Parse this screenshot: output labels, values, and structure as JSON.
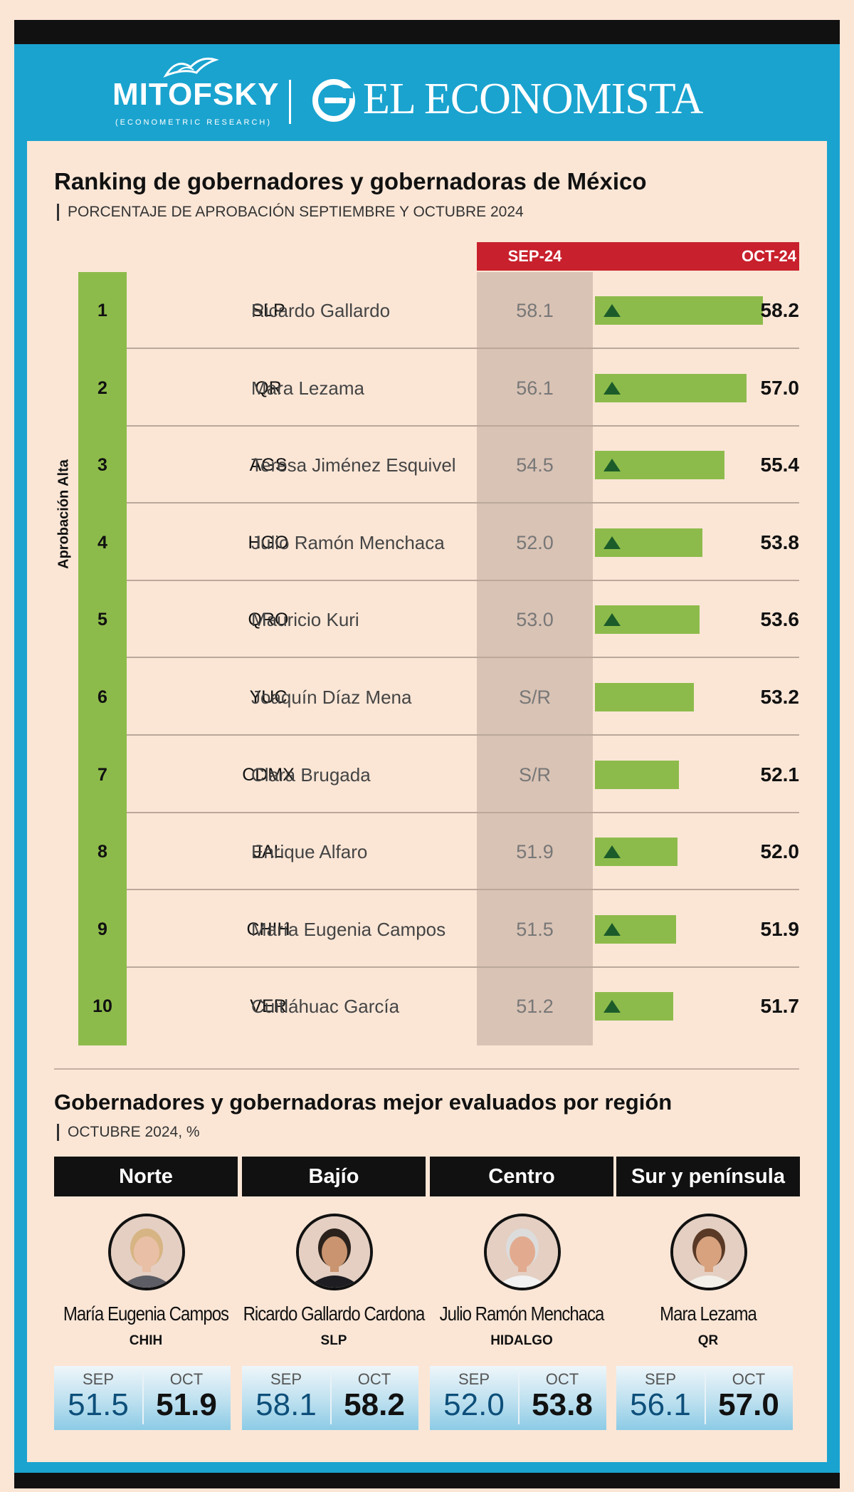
{
  "brand": {
    "logo_left": "MITOFSKY",
    "logo_left_sub": "(ECONOMETRIC RESEARCH)",
    "logo_right": "EL ECONOMISTA"
  },
  "chart_data": {
    "type": "bar",
    "title": "Ranking de gobernadores y gobernadoras de México",
    "subtitle": "PORCENTAJE DE APROBACIÓN SEPTIEMBRE Y OCTUBRE 2024",
    "group_label": "Aprobación Alta",
    "headers": {
      "sep": "SEP-24",
      "oct": "OCT-24"
    },
    "xlim": [
      0,
      60
    ],
    "rows": [
      {
        "rank": "1",
        "state": "SLP",
        "name": "Ricardo Gallardo",
        "sep": "58.1",
        "oct": 58.2,
        "oct_label": "58.2",
        "up": true
      },
      {
        "rank": "2",
        "state": "QR",
        "name": "Mara Lezama",
        "sep": "56.1",
        "oct": 57.0,
        "oct_label": "57.0",
        "up": true
      },
      {
        "rank": "3",
        "state": "AGS",
        "name": "Teresa Jiménez Esquivel",
        "sep": "54.5",
        "oct": 55.4,
        "oct_label": "55.4",
        "up": true
      },
      {
        "rank": "4",
        "state": "HGO",
        "name": "Julio Ramón Menchaca",
        "sep": "52.0",
        "oct": 53.8,
        "oct_label": "53.8",
        "up": true
      },
      {
        "rank": "5",
        "state": "QRO",
        "name": "Mauricio Kuri",
        "sep": "53.0",
        "oct": 53.6,
        "oct_label": "53.6",
        "up": true
      },
      {
        "rank": "6",
        "state": "YUC",
        "name": "Joaquín Díaz Mena",
        "sep": "S/R",
        "oct": 53.2,
        "oct_label": "53.2",
        "up": false
      },
      {
        "rank": "7",
        "state": "CDMX",
        "name": "Clara Brugada",
        "sep": "S/R",
        "oct": 52.1,
        "oct_label": "52.1",
        "up": false
      },
      {
        "rank": "8",
        "state": "JAL",
        "name": "Enrique Alfaro",
        "sep": "51.9",
        "oct": 52.0,
        "oct_label": "52.0",
        "up": true
      },
      {
        "rank": "9",
        "state": "CHIH",
        "name": "María Eugenia Campos",
        "sep": "51.5",
        "oct": 51.9,
        "oct_label": "51.9",
        "up": true
      },
      {
        "rank": "10",
        "state": "VER",
        "name": "Cuitláhuac García",
        "sep": "51.2",
        "oct": 51.7,
        "oct_label": "51.7",
        "up": true
      }
    ]
  },
  "regions": {
    "title": "Gobernadores y gobernadoras mejor evaluados por región",
    "subtitle": "OCTUBRE 2024, %",
    "sep_label": "SEP",
    "oct_label": "OCT",
    "items": [
      {
        "region": "Norte",
        "name": "María Eugenia Campos",
        "state": "CHIH",
        "sep": "51.5",
        "oct": "51.9",
        "skin": "#e9bfa5",
        "hair": "#d7b483",
        "suit": "#5d5d66"
      },
      {
        "region": "Bajío",
        "name": "Ricardo Gallardo Cardona",
        "state": "SLP",
        "sep": "58.1",
        "oct": "58.2",
        "skin": "#c9946f",
        "hair": "#2a211c",
        "suit": "#1d1d22"
      },
      {
        "region": "Centro",
        "name": "Julio Ramón Menchaca",
        "state": "HIDALGO",
        "sep": "52.0",
        "oct": "53.8",
        "skin": "#e2ab8f",
        "hair": "#dcdcdc",
        "suit": "#f1f1f1"
      },
      {
        "region": "Sur y península",
        "name": "Mara Lezama",
        "state": "QR",
        "sep": "56.1",
        "oct": "57.0",
        "skin": "#d8a27f",
        "hair": "#5a3a26",
        "suit": "#f3f0ea"
      }
    ]
  },
  "colors": {
    "accent_blue": "#1aa3cf",
    "header_red": "#c8202c",
    "bar_green": "#8dbb4b",
    "arrow_green": "#1c5c2a"
  }
}
